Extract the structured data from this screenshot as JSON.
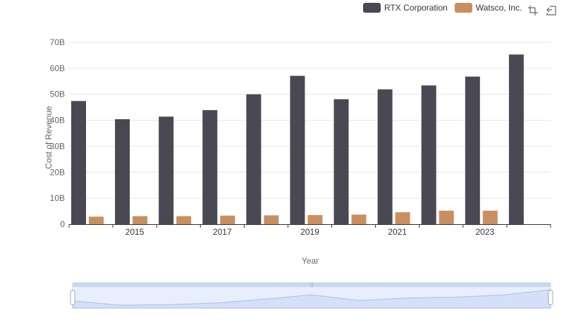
{
  "legend": {
    "items": [
      {
        "label": "RTX Corporation",
        "color": "#4a4953"
      },
      {
        "label": "Watsco, Inc.",
        "color": "#c89060"
      }
    ]
  },
  "toolbox": {
    "icons": [
      "restore-icon",
      "back-icon"
    ]
  },
  "chart_data": {
    "type": "bar",
    "categories": [
      "2014",
      "2015",
      "2016",
      "2017",
      "2018",
      "2019",
      "2020",
      "2021",
      "2022",
      "2023",
      "2024"
    ],
    "x_tick_labels": [
      "2015",
      "2017",
      "2019",
      "2021",
      "2023"
    ],
    "series": [
      {
        "name": "RTX Corporation",
        "color": "#4a4953",
        "values": [
          47.4,
          40.4,
          41.4,
          43.9,
          50.0,
          57.1,
          48.1,
          51.9,
          53.4,
          56.8,
          65.3
        ]
      },
      {
        "name": "Watsco, Inc.",
        "color": "#c89060",
        "values": [
          2.9,
          3.1,
          3.1,
          3.3,
          3.4,
          3.5,
          3.7,
          4.6,
          5.2,
          5.2,
          0
        ]
      }
    ],
    "xlabel": "Year",
    "ylabel": "Cost of Revenue",
    "ylim": [
      0,
      70
    ],
    "y_ticks": [
      0,
      10,
      20,
      30,
      40,
      50,
      60,
      70
    ],
    "y_tick_labels": [
      "0",
      "10B",
      "20B",
      "30B",
      "40B",
      "50B",
      "60B",
      "70B"
    ],
    "grid": true,
    "legend_position": "top-right",
    "data_zoom": {
      "start": 0,
      "end": 100
    }
  }
}
